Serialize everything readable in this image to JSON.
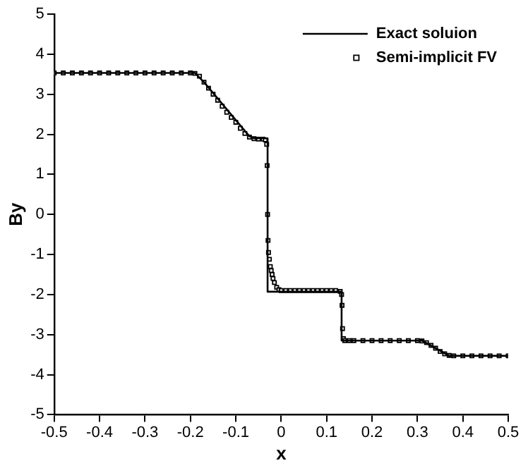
{
  "chart_data": {
    "type": "line",
    "xlabel": "x",
    "ylabel": "By",
    "xlim": [
      -0.5,
      0.5
    ],
    "xticks": [
      -0.5,
      -0.4,
      -0.3,
      -0.2,
      -0.1,
      0,
      0.1,
      0.2,
      0.3,
      0.4,
      0.5
    ],
    "ylim": [
      -5,
      5
    ],
    "yticks": [
      -5,
      -4,
      -3,
      -2,
      -1,
      0,
      1,
      2,
      3,
      4,
      5
    ],
    "grid": false,
    "legend": "top right",
    "series": [
      {
        "name": "Exact soluion",
        "type": "line",
        "color": "#000000",
        "marker": "none",
        "line_style": "solid",
        "x": [
          -0.5,
          -0.19,
          -0.17,
          -0.07,
          -0.06,
          -0.03,
          -0.03,
          0.133,
          0.133,
          0.31,
          0.37,
          0.5
        ],
        "values": [
          3.53,
          3.53,
          3.3,
          1.95,
          1.9,
          1.9,
          -1.93,
          -1.93,
          -3.15,
          -3.15,
          -3.53,
          -3.53
        ]
      },
      {
        "name": "Semi-implicit FV",
        "type": "scatter",
        "color": "#000000",
        "marker": "square",
        "x": [
          -0.5,
          -0.48,
          -0.46,
          -0.44,
          -0.42,
          -0.4,
          -0.38,
          -0.36,
          -0.34,
          -0.32,
          -0.3,
          -0.28,
          -0.26,
          -0.24,
          -0.22,
          -0.2,
          -0.19,
          -0.18,
          -0.17,
          -0.16,
          -0.15,
          -0.14,
          -0.13,
          -0.12,
          -0.11,
          -0.1,
          -0.09,
          -0.08,
          -0.07,
          -0.06,
          -0.05,
          -0.04,
          -0.035,
          -0.032,
          -0.031,
          -0.03,
          -0.029,
          -0.028,
          -0.026,
          -0.024,
          -0.022,
          -0.02,
          -0.018,
          -0.015,
          -0.01,
          -0.005,
          0,
          0.01,
          0.02,
          0.03,
          0.04,
          0.05,
          0.06,
          0.07,
          0.08,
          0.09,
          0.1,
          0.11,
          0.12,
          0.13,
          0.133,
          0.134,
          0.135,
          0.137,
          0.14,
          0.15,
          0.16,
          0.18,
          0.2,
          0.22,
          0.24,
          0.26,
          0.28,
          0.3,
          0.31,
          0.32,
          0.33,
          0.34,
          0.35,
          0.36,
          0.37,
          0.38,
          0.4,
          0.42,
          0.44,
          0.46,
          0.48,
          0.5
        ],
        "values": [
          3.53,
          3.53,
          3.53,
          3.53,
          3.53,
          3.53,
          3.53,
          3.53,
          3.53,
          3.53,
          3.53,
          3.53,
          3.53,
          3.53,
          3.53,
          3.53,
          3.52,
          3.45,
          3.3,
          3.15,
          3.0,
          2.85,
          2.7,
          2.55,
          2.42,
          2.3,
          2.15,
          2.02,
          1.93,
          1.89,
          1.88,
          1.88,
          1.86,
          1.75,
          1.22,
          0.0,
          -0.65,
          -0.95,
          -1.12,
          -1.3,
          -1.4,
          -1.5,
          -1.6,
          -1.7,
          -1.82,
          -1.88,
          -1.9,
          -1.9,
          -1.9,
          -1.9,
          -1.9,
          -1.9,
          -1.9,
          -1.9,
          -1.9,
          -1.9,
          -1.9,
          -1.9,
          -1.9,
          -1.92,
          -2.0,
          -2.27,
          -2.85,
          -3.1,
          -3.15,
          -3.15,
          -3.15,
          -3.15,
          -3.15,
          -3.15,
          -3.15,
          -3.15,
          -3.15,
          -3.15,
          -3.16,
          -3.2,
          -3.27,
          -3.34,
          -3.42,
          -3.48,
          -3.52,
          -3.53,
          -3.53,
          -3.53,
          -3.53,
          -3.53,
          -3.53,
          -3.53
        ]
      }
    ]
  }
}
